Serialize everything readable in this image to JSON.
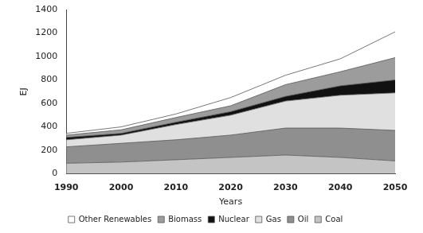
{
  "chart_data": {
    "type": "area",
    "stacked": true,
    "grid": false,
    "legend": "bottom",
    "x_label": "Years",
    "y_label": "EJ",
    "x": [
      1990,
      2000,
      2010,
      2020,
      2030,
      2040,
      2050
    ],
    "xlim": [
      1990,
      2050
    ],
    "xticks": [
      1990,
      2000,
      2010,
      2020,
      2030,
      2040,
      2050
    ],
    "ylim": [
      0,
      1400
    ],
    "yticks": [
      0,
      200,
      400,
      600,
      800,
      1000,
      1200,
      1400
    ],
    "series": [
      {
        "name": "Coal",
        "color": "#c4c4c4",
        "values": [
          90,
          100,
          120,
          140,
          160,
          140,
          110
        ]
      },
      {
        "name": "Oil",
        "color": "#8f8f8f",
        "values": [
          140,
          160,
          170,
          190,
          230,
          250,
          260
        ]
      },
      {
        "name": "Gas",
        "color": "#e0e0e0",
        "values": [
          60,
          70,
          130,
          170,
          230,
          280,
          320
        ]
      },
      {
        "name": "Nuclear",
        "color": "#111111",
        "values": [
          20,
          15,
          20,
          30,
          40,
          80,
          110
        ]
      },
      {
        "name": "Biomass",
        "color": "#9c9c9c",
        "values": [
          20,
          30,
          40,
          50,
          100,
          120,
          190
        ]
      },
      {
        "name": "Other Renewables",
        "color": "#ffffff",
        "values": [
          15,
          25,
          30,
          70,
          80,
          110,
          220
        ]
      }
    ]
  }
}
